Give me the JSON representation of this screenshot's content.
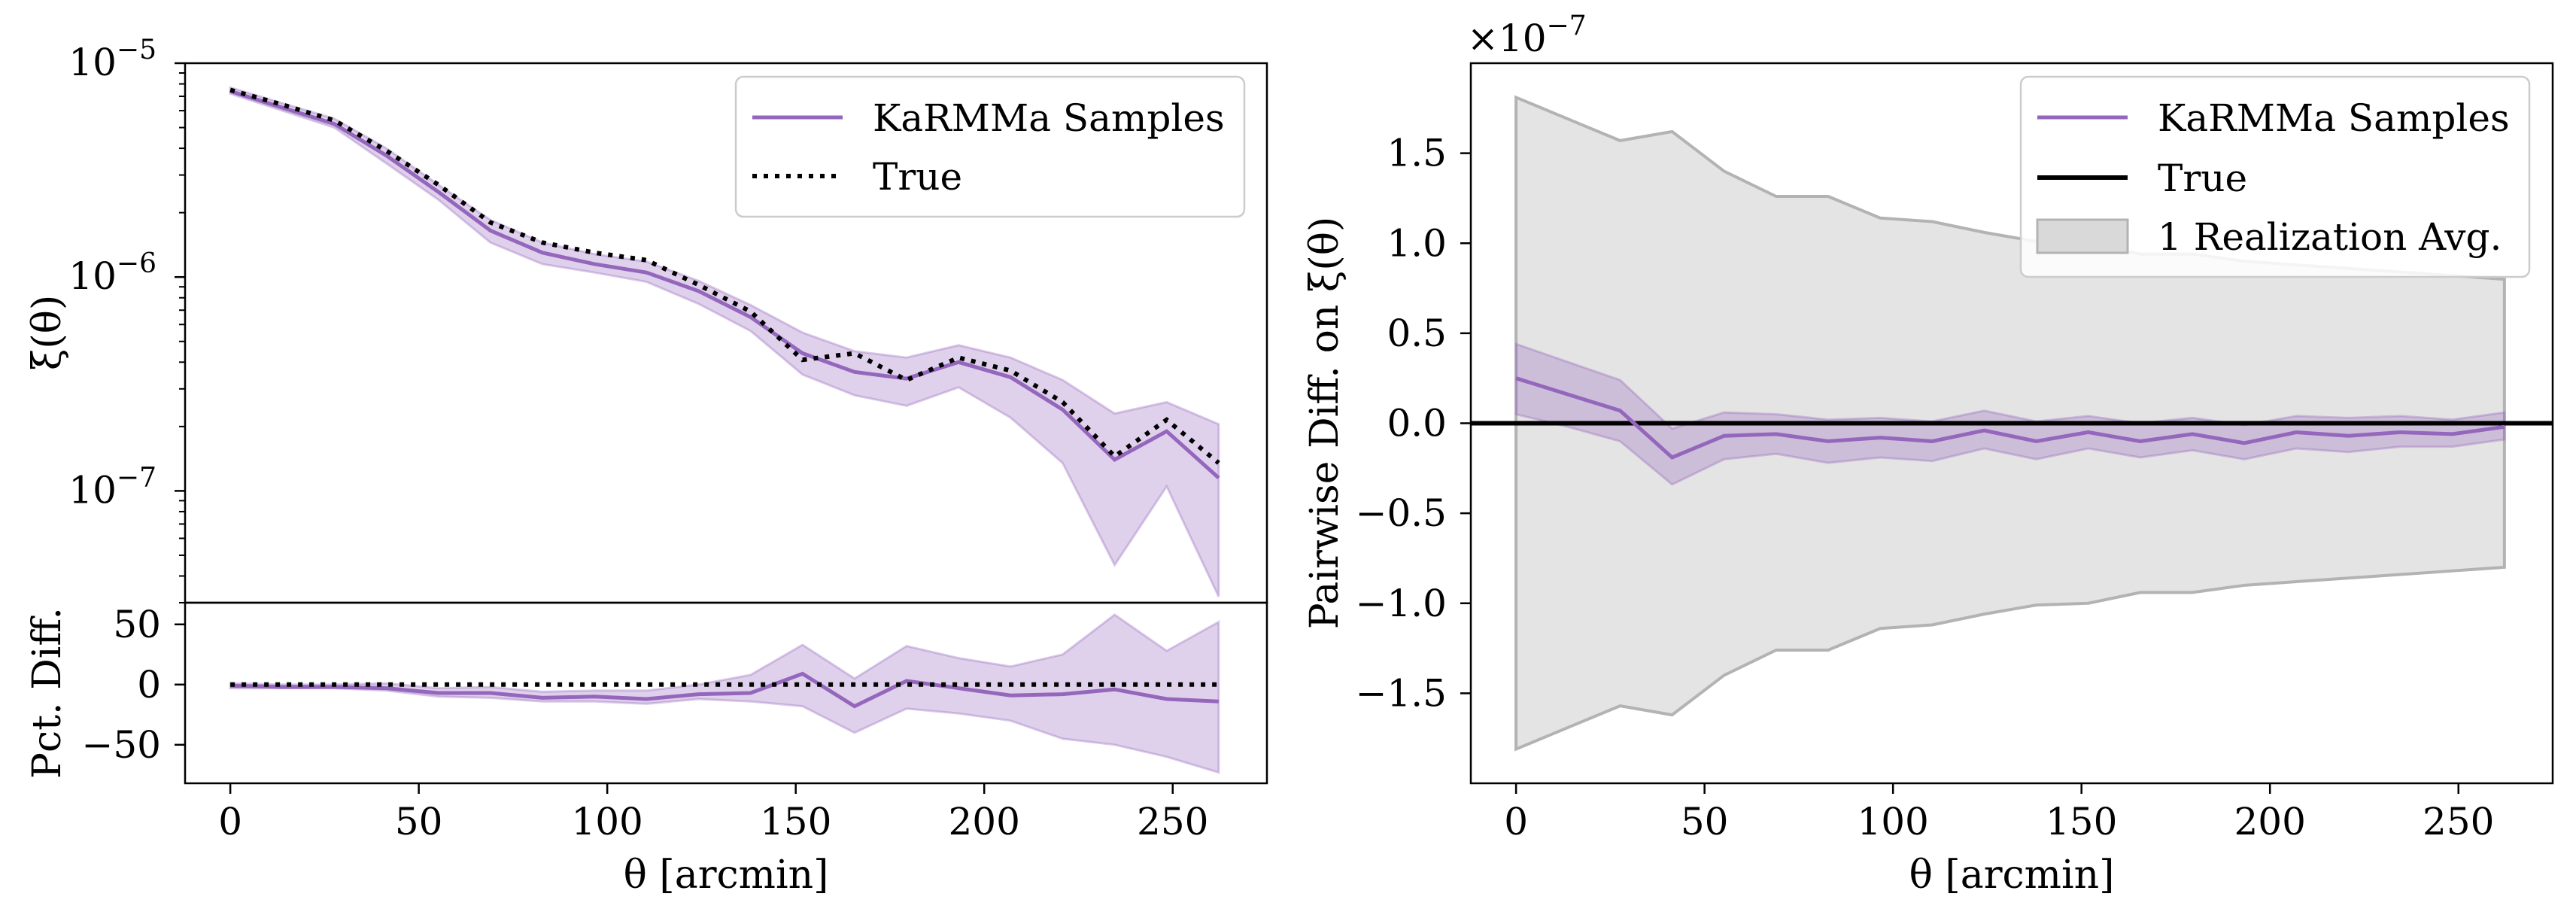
{
  "colors": {
    "samples": "#9467bd",
    "band": "#9467bd",
    "true": "#000000",
    "realization": "#b8b8b8"
  },
  "chart_data": [
    {
      "type": "line",
      "panel": "left-top",
      "yscale": "log",
      "ylim": [
        3e-08,
        1e-05
      ],
      "xlim": [
        -12,
        275
      ],
      "ylabel": "ξ(θ)",
      "yticks": [
        {
          "v": 1e-05,
          "mant": "10",
          "exp": "−5"
        },
        {
          "v": 1e-06,
          "mant": "10",
          "exp": "−6"
        },
        {
          "v": 1e-07,
          "mant": "10",
          "exp": "−7"
        }
      ],
      "x": [
        0,
        13.8,
        27.6,
        41.4,
        55.2,
        69,
        82.8,
        96.6,
        110.4,
        124.2,
        138,
        151.8,
        165.6,
        179.4,
        193.2,
        207,
        220.8,
        234.6,
        248.4,
        262.2
      ],
      "series": [
        {
          "name": "KaRMMa Samples",
          "style": "solid",
          "values": [
            7.4e-06,
            6.2e-06,
            5.2e-06,
            3.7e-06,
            2.5e-06,
            1.65e-06,
            1.3e-06,
            1.15e-06,
            1.05e-06,
            8.6e-07,
            6.5e-07,
            4.4e-07,
            3.6e-07,
            3.35e-07,
            4e-07,
            3.4e-07,
            2.4e-07,
            1.4e-07,
            1.9e-07,
            1.15e-07
          ],
          "lower": [
            7.2e-06,
            6e-06,
            5e-06,
            3.4e-06,
            2.3e-06,
            1.45e-06,
            1.15e-06,
            1.05e-06,
            9.5e-07,
            7.5e-07,
            5.6e-07,
            3.5e-07,
            2.8e-07,
            2.5e-07,
            3.05e-07,
            2.2e-07,
            1.35e-07,
            4.5e-08,
            1.05e-07,
            3.2e-08
          ],
          "upper": [
            7.7e-06,
            6.5e-06,
            5.5e-06,
            4e-06,
            2.7e-06,
            1.85e-06,
            1.45e-06,
            1.28e-06,
            1.18e-06,
            9.6e-07,
            7.4e-07,
            5.5e-07,
            4.5e-07,
            4.2e-07,
            4.8e-07,
            4.2e-07,
            3.3e-07,
            2.3e-07,
            2.6e-07,
            2.05e-07
          ]
        },
        {
          "name": "True",
          "style": "dotted",
          "values": [
            7.5e-06,
            6.4e-06,
            5.4e-06,
            3.9e-06,
            2.7e-06,
            1.8e-06,
            1.45e-06,
            1.3e-06,
            1.2e-06,
            9.2e-07,
            6.9e-07,
            4.1e-07,
            4.4e-07,
            3.3e-07,
            4.2e-07,
            3.65e-07,
            2.6e-07,
            1.45e-07,
            2.15e-07,
            1.35e-07
          ]
        }
      ]
    },
    {
      "type": "line",
      "panel": "left-bottom",
      "ylabel": "Pct. Diff.",
      "xlabel": "θ [arcmin]",
      "ylim": [
        -82,
        68
      ],
      "yticks": [
        {
          "v": 50,
          "t": "50"
        },
        {
          "v": 0,
          "t": "0"
        },
        {
          "v": -50,
          "t": "−50"
        }
      ],
      "xticks": [
        0,
        50,
        100,
        150,
        200,
        250
      ],
      "x": [
        0,
        13.8,
        27.6,
        41.4,
        55.2,
        69,
        82.8,
        96.6,
        110.4,
        124.2,
        138,
        151.8,
        165.6,
        179.4,
        193.2,
        207,
        220.8,
        234.6,
        248.4,
        262.2
      ],
      "series": [
        {
          "name": "KaRMMa Samples",
          "style": "solid",
          "values": [
            -1,
            -2,
            -2,
            -3,
            -7,
            -7,
            -11,
            -10,
            -12,
            -8,
            -7,
            9,
            -18,
            3,
            -3,
            -9,
            -8,
            -4,
            -12,
            -14
          ],
          "lower": [
            -3,
            -3,
            -3,
            -5,
            -10,
            -11,
            -14,
            -14,
            -16,
            -12,
            -14,
            -18,
            -40,
            -20,
            -24,
            -30,
            -45,
            -50,
            -60,
            -73
          ],
          "upper": [
            1,
            0,
            0,
            1,
            -3,
            -2,
            -6,
            -5,
            -5,
            0,
            8,
            33,
            5,
            32,
            22,
            15,
            25,
            58,
            28,
            52
          ]
        },
        {
          "name": "True",
          "style": "dotted",
          "values": [
            0,
            0,
            0,
            0,
            0,
            0,
            0,
            0,
            0,
            0,
            0,
            0,
            0,
            0,
            0,
            0,
            0,
            0,
            0,
            0
          ]
        }
      ]
    },
    {
      "type": "line",
      "panel": "right",
      "ylabel": "Pairwise Diff. on ξ(θ)",
      "xlabel": "θ [arcmin]",
      "offset_text": "×10",
      "offset_exp": "−7",
      "ylim": [
        -2.0,
        2.0
      ],
      "xlim": [
        -12,
        275
      ],
      "yticks": [
        {
          "v": 1.5,
          "t": "1.5"
        },
        {
          "v": 1.0,
          "t": "1.0"
        },
        {
          "v": 0.5,
          "t": "0.5"
        },
        {
          "v": 0.0,
          "t": "0.0"
        },
        {
          "v": -0.5,
          "t": "−0.5"
        },
        {
          "v": -1.0,
          "t": "−1.0"
        },
        {
          "v": -1.5,
          "t": "−1.5"
        }
      ],
      "xticks": [
        0,
        50,
        100,
        150,
        200,
        250
      ],
      "x": [
        0,
        13.8,
        27.6,
        41.4,
        55.2,
        69,
        82.8,
        96.6,
        110.4,
        124.2,
        138,
        151.8,
        165.6,
        179.4,
        193.2,
        207,
        220.8,
        234.6,
        248.4,
        262.2
      ],
      "series": [
        {
          "name": "KaRMMa Samples",
          "style": "solid",
          "values": [
            0.25,
            0.16,
            0.07,
            -0.19,
            -0.07,
            -0.06,
            -0.1,
            -0.08,
            -0.1,
            -0.04,
            -0.1,
            -0.05,
            -0.1,
            -0.06,
            -0.11,
            -0.05,
            -0.07,
            -0.05,
            -0.06,
            -0.02
          ],
          "lower": [
            0.05,
            -0.02,
            -0.1,
            -0.34,
            -0.2,
            -0.17,
            -0.22,
            -0.19,
            -0.21,
            -0.14,
            -0.2,
            -0.14,
            -0.19,
            -0.15,
            -0.2,
            -0.14,
            -0.16,
            -0.13,
            -0.13,
            -0.09
          ],
          "upper": [
            0.44,
            0.34,
            0.24,
            -0.03,
            0.06,
            0.05,
            0.02,
            0.03,
            0.01,
            0.07,
            0.01,
            0.04,
            0.0,
            0.03,
            -0.01,
            0.04,
            0.03,
            0.04,
            0.02,
            0.06
          ]
        },
        {
          "name": "True",
          "style": "solid-black",
          "values": [
            0,
            0,
            0,
            0,
            0,
            0,
            0,
            0,
            0,
            0,
            0,
            0,
            0,
            0,
            0,
            0,
            0,
            0,
            0,
            0
          ]
        },
        {
          "name": "1 Realization Avg.",
          "style": "band-gray",
          "lower": [
            -1.81,
            -1.69,
            -1.57,
            -1.62,
            -1.4,
            -1.26,
            -1.26,
            -1.14,
            -1.12,
            -1.06,
            -1.01,
            -1.0,
            -0.94,
            -0.94,
            -0.9,
            -0.88,
            -0.86,
            -0.84,
            -0.82,
            -0.8
          ],
          "upper": [
            1.81,
            1.69,
            1.57,
            1.62,
            1.4,
            1.26,
            1.26,
            1.14,
            1.12,
            1.06,
            1.01,
            1.0,
            0.94,
            0.94,
            0.9,
            0.88,
            0.86,
            0.84,
            0.82,
            0.8
          ]
        }
      ]
    }
  ],
  "legends": {
    "left": [
      "KaRMMa Samples",
      "True"
    ],
    "right": [
      "KaRMMa Samples",
      "True",
      "1 Realization Avg."
    ]
  }
}
